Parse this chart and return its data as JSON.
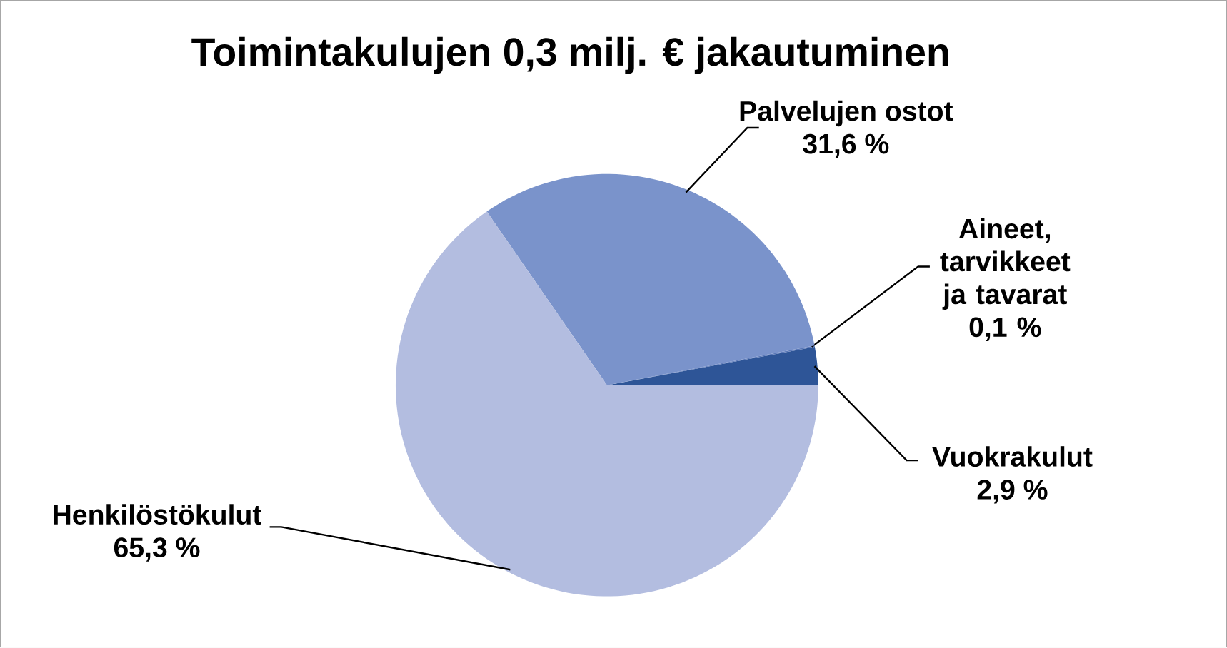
{
  "chart_data": {
    "type": "pie",
    "title": "Toimintakulujen 0,3 milj. € jakautuminen",
    "categories": [
      "Vuokrakulut",
      "Aineet, tarvikkeet ja tavarat",
      "Palvelujen ostot",
      "Henkilöstökulut"
    ],
    "values": [
      2.9,
      0.1,
      31.6,
      65.3
    ],
    "value_labels": [
      "2,9 %",
      "0,1 %",
      "31,6 %",
      "65,3 %"
    ],
    "colors": [
      "#2e5597",
      "#5a78b8",
      "#7a93cb",
      "#b3bde0"
    ]
  }
}
